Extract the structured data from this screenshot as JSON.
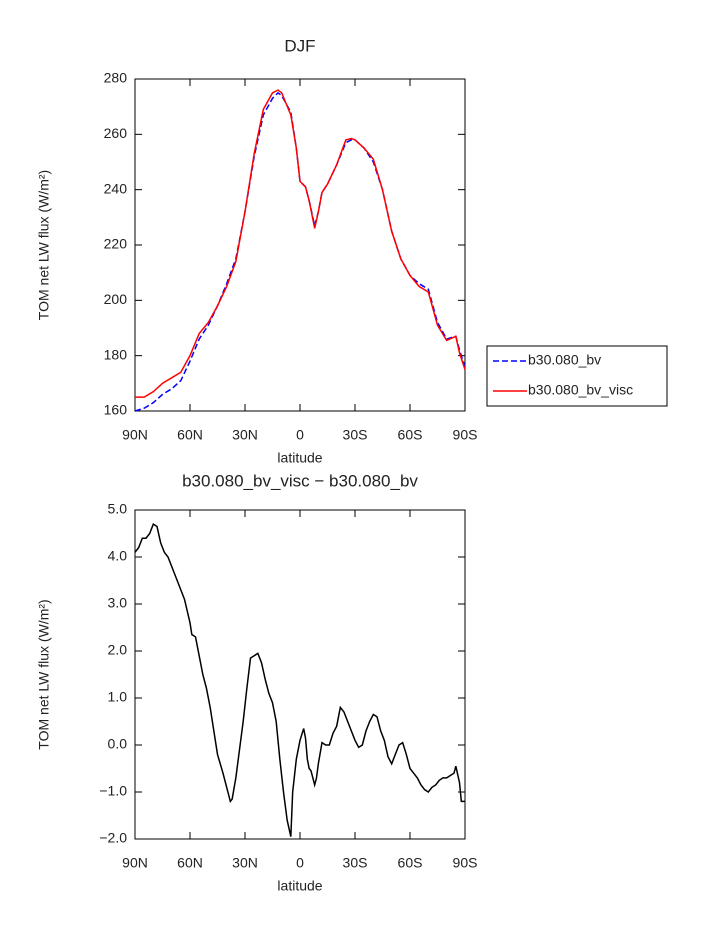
{
  "chart_data": [
    {
      "type": "line",
      "title": "DJF",
      "x_label": "latitude",
      "y_label": "TOM net LW flux (W/m²)",
      "x": [
        90,
        85,
        80,
        75,
        70,
        65,
        60,
        55,
        50,
        45,
        40,
        35,
        30,
        25,
        20,
        15,
        12,
        10,
        5,
        2,
        0,
        -3,
        -5,
        -8,
        -10,
        -12,
        -15,
        -20,
        -25,
        -28,
        -30,
        -35,
        -40,
        -45,
        -50,
        -55,
        -60,
        -65,
        -70,
        -75,
        -80,
        -85,
        -87,
        -90
      ],
      "series": [
        {
          "name": "b30.080_bv",
          "color": "#0000ff",
          "dash": "dashed",
          "values": [
            160,
            161,
            163,
            166,
            168,
            171,
            178,
            186,
            191,
            198,
            206,
            215,
            232,
            252,
            267,
            273,
            275,
            274,
            268,
            255,
            243,
            241,
            236,
            227,
            232,
            239,
            242,
            249,
            257,
            258,
            258,
            255,
            250,
            240,
            225,
            215,
            209,
            206,
            204,
            192,
            186,
            187,
            182,
            176
          ]
        },
        {
          "name": "b30.080_bv_visc",
          "color": "#ff0000",
          "dash": "solid",
          "values": [
            165,
            165,
            167,
            170,
            172,
            174,
            180,
            188,
            192,
            198,
            205,
            214,
            232,
            253,
            269,
            275,
            276,
            275,
            267,
            255,
            243,
            241,
            236,
            226,
            232,
            239,
            242,
            249,
            258,
            258.5,
            258,
            255,
            251,
            240,
            225,
            215,
            209,
            205,
            203,
            191,
            185.5,
            187,
            181,
            175
          ]
        }
      ],
      "xlim": [
        90,
        -90
      ],
      "xticks": [
        {
          "value": 90,
          "label": "90N"
        },
        {
          "value": 60,
          "label": "60N"
        },
        {
          "value": 30,
          "label": "30N"
        },
        0,
        {
          "value": -30,
          "label": "30S"
        },
        {
          "value": -60,
          "label": "60S"
        },
        {
          "value": -90,
          "label": "90S"
        }
      ],
      "ylim": [
        160,
        280
      ],
      "yticks": [
        160,
        180,
        200,
        220,
        240,
        260,
        280
      ],
      "legend": "right",
      "grid": false
    },
    {
      "type": "line",
      "title": "b30.080_bv_visc − b30.080_bv",
      "x_label": "latitude",
      "y_label": "TOM net LW flux (W/m²)",
      "x": [
        90,
        88,
        86,
        84,
        82,
        80,
        78,
        76,
        74,
        72,
        70,
        67,
        65,
        63,
        60,
        59,
        57,
        55,
        53,
        51,
        49,
        47,
        45,
        42,
        40,
        38,
        37,
        35,
        33,
        31,
        29,
        27,
        25,
        23,
        21,
        19,
        17,
        15,
        13,
        11,
        9,
        7,
        5,
        4,
        2,
        0,
        -2,
        -3,
        -4,
        -5,
        -6,
        -8,
        -9,
        -10,
        -12,
        -14,
        -16,
        -18,
        -20,
        -22,
        -24,
        -26,
        -28,
        -30,
        -32,
        -34,
        -36,
        -38,
        -40,
        -42,
        -44,
        -46,
        -48,
        -50,
        -52,
        -54,
        -56,
        -58,
        -60,
        -62,
        -64,
        -66,
        -68,
        -70,
        -72,
        -74,
        -76,
        -78,
        -80,
        -82,
        -84,
        -85,
        -87,
        -88,
        -90
      ],
      "series": [
        {
          "name": null,
          "color": "#000000",
          "dash": "solid",
          "values": [
            4.1,
            4.2,
            4.4,
            4.4,
            4.5,
            4.7,
            4.65,
            4.3,
            4.1,
            4.0,
            3.8,
            3.5,
            3.3,
            3.1,
            2.6,
            2.35,
            2.3,
            1.9,
            1.5,
            1.2,
            0.8,
            0.3,
            -0.2,
            -0.6,
            -0.9,
            -1.2,
            -1.15,
            -0.7,
            -0.1,
            0.5,
            1.2,
            1.85,
            1.9,
            1.95,
            1.75,
            1.4,
            1.1,
            0.9,
            0.5,
            -0.3,
            -1.0,
            -1.6,
            -1.95,
            -1.0,
            -0.3,
            0.1,
            0.35,
            0.15,
            -0.3,
            -0.5,
            -0.55,
            -0.85,
            -0.7,
            -0.4,
            0.05,
            0.0,
            0.0,
            0.25,
            0.4,
            0.8,
            0.7,
            0.5,
            0.3,
            0.1,
            -0.05,
            0.0,
            0.3,
            0.5,
            0.65,
            0.6,
            0.3,
            0.1,
            -0.25,
            -0.4,
            -0.2,
            0.0,
            0.05,
            -0.2,
            -0.5,
            -0.6,
            -0.7,
            -0.85,
            -0.95,
            -1.0,
            -0.9,
            -0.85,
            -0.75,
            -0.7,
            -0.7,
            -0.65,
            -0.6,
            -0.45,
            -0.8,
            -1.2,
            -1.2
          ]
        }
      ],
      "xlim": [
        90,
        -90
      ],
      "xticks": [
        {
          "value": 90,
          "label": "90N"
        },
        {
          "value": 60,
          "label": "60N"
        },
        {
          "value": 30,
          "label": "30N"
        },
        0,
        {
          "value": -30,
          "label": "30S"
        },
        {
          "value": -60,
          "label": "60S"
        },
        {
          "value": -90,
          "label": "90S"
        }
      ],
      "ylim": [
        -2,
        5
      ],
      "yticks": [
        {
          "value": -2,
          "label": "−2.0"
        },
        {
          "value": -1,
          "label": "−1.0"
        },
        {
          "value": 0,
          "label": "0.0"
        },
        {
          "value": 1,
          "label": "1.0"
        },
        {
          "value": 2,
          "label": "2.0"
        },
        {
          "value": 3,
          "label": "3.0"
        },
        {
          "value": 4,
          "label": "4.0"
        },
        {
          "value": 5,
          "label": "5.0"
        }
      ],
      "grid": false
    }
  ]
}
